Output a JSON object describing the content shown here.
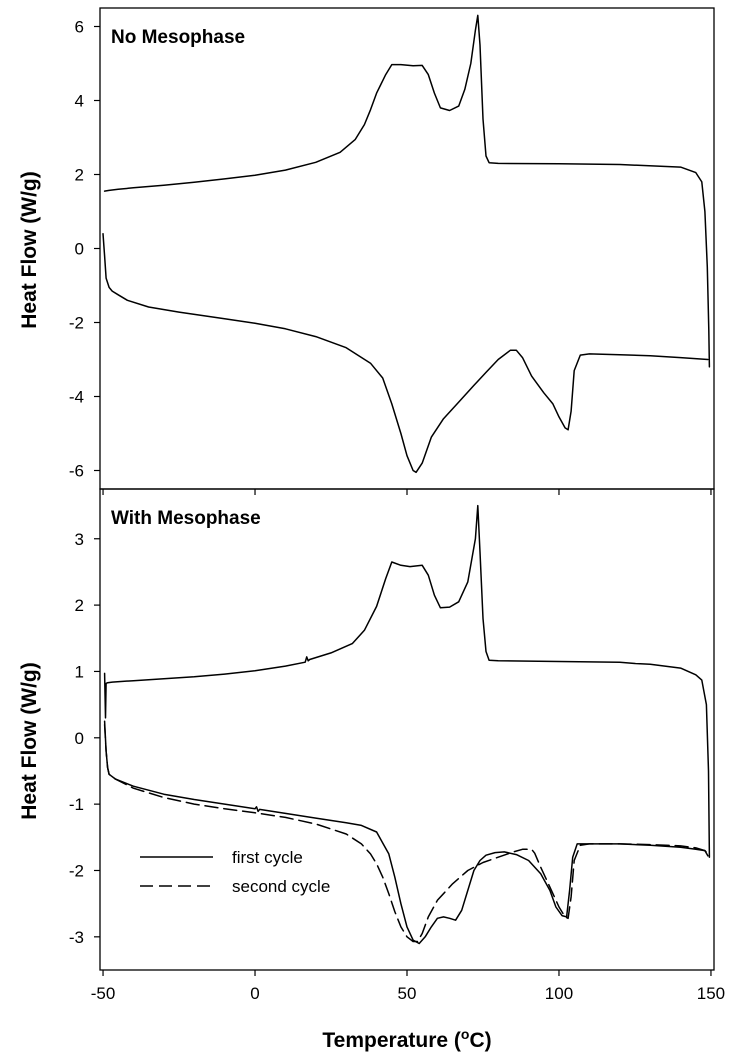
{
  "chart_data": [
    {
      "type": "line",
      "title": "No Mesophase",
      "ylabel": "Heat Flow (W/g)",
      "xlim": [
        -51,
        151
      ],
      "ylim": [
        -6.5,
        6.5
      ],
      "yticks": [
        -6,
        -4,
        -2,
        0,
        2,
        4,
        6
      ],
      "grid": false,
      "series": [
        {
          "style": "solid",
          "x": [
            -49.5,
            -48,
            -45,
            -40,
            -30,
            -20,
            -10,
            0,
            10,
            20,
            28,
            33,
            36,
            38,
            40,
            43,
            45,
            48,
            52,
            55,
            57,
            59,
            61,
            64,
            67,
            69,
            71,
            72.5,
            73.3,
            74,
            75,
            76,
            77,
            80,
            100,
            120,
            140,
            145,
            147,
            148,
            148.8,
            149.3,
            149.5
          ],
          "y": [
            1.55,
            1.57,
            1.6,
            1.64,
            1.71,
            1.79,
            1.88,
            1.98,
            2.12,
            2.33,
            2.6,
            2.95,
            3.35,
            3.75,
            4.2,
            4.7,
            4.97,
            4.97,
            4.94,
            4.95,
            4.7,
            4.2,
            3.8,
            3.73,
            3.85,
            4.3,
            5.0,
            5.9,
            6.3,
            5.5,
            3.5,
            2.5,
            2.32,
            2.3,
            2.29,
            2.27,
            2.2,
            2.05,
            1.8,
            1.0,
            -0.5,
            -2.2,
            -3.2
          ]
        },
        {
          "style": "solid",
          "x": [
            -50,
            -49.5,
            -49,
            -48,
            -47,
            -45,
            -42,
            -35,
            -25,
            -10,
            0,
            10,
            20,
            30,
            38,
            42,
            45,
            48,
            50,
            52,
            53,
            55,
            58,
            62,
            67,
            72,
            76,
            80,
            84,
            86,
            88,
            91,
            95,
            98,
            100,
            102,
            103,
            104,
            105,
            107,
            110,
            120,
            130,
            140,
            149
          ],
          "y": [
            0.4,
            -0.2,
            -0.8,
            -1.05,
            -1.15,
            -1.25,
            -1.4,
            -1.58,
            -1.72,
            -1.9,
            -2.02,
            -2.17,
            -2.38,
            -2.68,
            -3.1,
            -3.5,
            -4.2,
            -5.0,
            -5.6,
            -6.0,
            -6.05,
            -5.8,
            -5.1,
            -4.6,
            -4.15,
            -3.7,
            -3.35,
            -3.0,
            -2.75,
            -2.75,
            -2.95,
            -3.45,
            -3.9,
            -4.2,
            -4.55,
            -4.85,
            -4.9,
            -4.4,
            -3.3,
            -2.88,
            -2.85,
            -2.87,
            -2.9,
            -2.95,
            -3.0
          ]
        }
      ]
    },
    {
      "type": "line",
      "title": "With Mesophase",
      "xlabel": "Temperature (°C)",
      "ylabel": "Heat Flow (W/g)",
      "xlim": [
        -51,
        151
      ],
      "ylim": [
        -3.5,
        3.75
      ],
      "xticks": [
        -50,
        0,
        50,
        100,
        150
      ],
      "yticks": [
        -3,
        -2,
        -1,
        0,
        1,
        2,
        3
      ],
      "grid": false,
      "legend_position": "lower-left",
      "series": [
        {
          "name": "first cycle",
          "style": "solid",
          "x": [
            -49.5,
            -49.2,
            -49,
            -48.5,
            -47,
            -40,
            -30,
            -20,
            -10,
            0,
            10,
            16.5,
            17,
            17.5,
            18,
            25,
            32,
            36,
            40,
            43,
            45,
            48,
            51,
            55,
            57,
            59,
            61,
            64,
            67,
            70,
            72.5,
            73.3,
            74,
            75,
            76,
            77,
            80,
            100,
            120,
            125,
            130,
            140,
            145,
            147,
            148.5,
            149.2,
            149.5
          ],
          "y": [
            0.97,
            0.3,
            0.82,
            0.83,
            0.84,
            0.86,
            0.89,
            0.92,
            0.96,
            1.01,
            1.08,
            1.14,
            1.22,
            1.16,
            1.18,
            1.28,
            1.42,
            1.62,
            1.98,
            2.4,
            2.65,
            2.6,
            2.58,
            2.6,
            2.45,
            2.15,
            1.96,
            1.97,
            2.05,
            2.35,
            3.0,
            3.5,
            2.8,
            1.8,
            1.3,
            1.17,
            1.16,
            1.15,
            1.14,
            1.12,
            1.11,
            1.05,
            0.95,
            0.87,
            0.5,
            -0.5,
            -1.8
          ]
        },
        {
          "name": "first cycle",
          "style": "solid",
          "x": [
            -49.5,
            -49,
            -48.5,
            -48,
            -46,
            -40,
            -30,
            -20,
            -10,
            0,
            0.5,
            1,
            1.5,
            10,
            20,
            30,
            35,
            40,
            44,
            46,
            48,
            50,
            52,
            54,
            56,
            58,
            60,
            62,
            64,
            66,
            68,
            70,
            72,
            74,
            76,
            79,
            82,
            86,
            90,
            94,
            97,
            99,
            101,
            102.5,
            103.5,
            104.5,
            106,
            110,
            120,
            130,
            140,
            145,
            148,
            149
          ],
          "y": [
            0.25,
            -0.2,
            -0.45,
            -0.55,
            -0.62,
            -0.73,
            -0.85,
            -0.93,
            -1.0,
            -1.07,
            -1.04,
            -1.11,
            -1.08,
            -1.14,
            -1.21,
            -1.28,
            -1.32,
            -1.42,
            -1.75,
            -2.1,
            -2.5,
            -2.85,
            -3.05,
            -3.1,
            -3.0,
            -2.85,
            -2.72,
            -2.7,
            -2.72,
            -2.75,
            -2.6,
            -2.3,
            -2.0,
            -1.85,
            -1.77,
            -1.73,
            -1.72,
            -1.76,
            -1.85,
            -2.05,
            -2.3,
            -2.55,
            -2.68,
            -2.7,
            -2.3,
            -1.8,
            -1.6,
            -1.6,
            -1.6,
            -1.62,
            -1.65,
            -1.68,
            -1.7,
            -1.78
          ]
        },
        {
          "name": "second cycle",
          "style": "dashed",
          "x": [
            -49.5,
            -49,
            -48.5,
            -48,
            -46,
            -40,
            -30,
            -20,
            -10,
            0,
            10,
            20,
            30,
            35,
            38,
            40,
            42,
            44,
            46,
            48,
            50,
            52,
            53.5,
            55,
            57,
            60,
            65,
            70,
            75,
            80,
            85,
            88,
            90,
            91,
            92,
            94,
            97,
            100,
            102,
            103,
            104,
            105,
            107,
            110,
            120,
            130,
            140,
            145,
            148,
            149
          ],
          "y": [
            0.2,
            -0.2,
            -0.45,
            -0.55,
            -0.62,
            -0.76,
            -0.9,
            -1.0,
            -1.07,
            -1.13,
            -1.2,
            -1.3,
            -1.45,
            -1.6,
            -1.75,
            -1.9,
            -2.1,
            -2.35,
            -2.62,
            -2.85,
            -3.0,
            -3.07,
            -3.07,
            -2.95,
            -2.7,
            -2.45,
            -2.2,
            -2.0,
            -1.88,
            -1.8,
            -1.72,
            -1.68,
            -1.68,
            -1.68,
            -1.74,
            -1.95,
            -2.25,
            -2.55,
            -2.7,
            -2.72,
            -2.4,
            -1.85,
            -1.62,
            -1.6,
            -1.6,
            -1.61,
            -1.63,
            -1.66,
            -1.7,
            -1.75
          ]
        }
      ]
    }
  ]
}
